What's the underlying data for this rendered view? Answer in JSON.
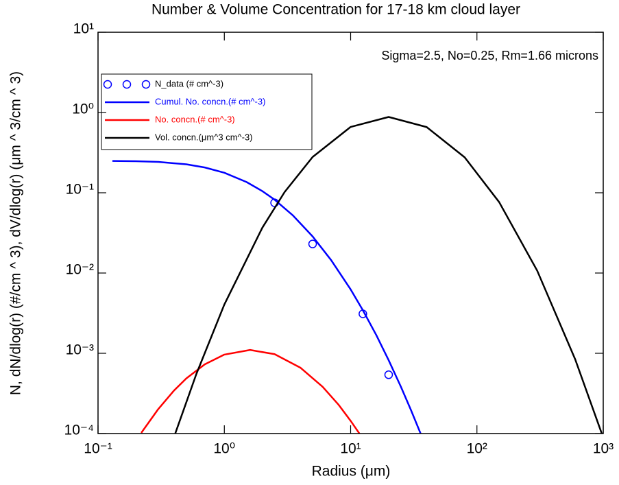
{
  "chart_data": {
    "type": "line",
    "title": "Number & Volume Concentration for 17-18 km cloud layer",
    "annotation": "Sigma=2.5, No=0.25, Rm=1.66 microns",
    "x_label": "Radius (μm)",
    "y_label": "N, dN/dlog(r) (#/cm ^ 3), dV/dlog(r) (μm ^ 3/cm ^ 3)",
    "x_scale": "log",
    "y_scale": "log",
    "xlim": [
      0.1,
      1000
    ],
    "ylim": [
      0.0001,
      10
    ],
    "xticks": [
      {
        "value": 0.1,
        "label": "10⁻¹"
      },
      {
        "value": 1,
        "label": "10⁰"
      },
      {
        "value": 10,
        "label": "10¹"
      },
      {
        "value": 100,
        "label": "10²"
      },
      {
        "value": 1000,
        "label": "10³"
      }
    ],
    "yticks": [
      {
        "value": 0.0001,
        "label": "10⁻⁴"
      },
      {
        "value": 0.001,
        "label": "10⁻³"
      },
      {
        "value": 0.01,
        "label": "10⁻²"
      },
      {
        "value": 0.1,
        "label": "10⁻¹"
      },
      {
        "value": 1,
        "label": "10⁰"
      },
      {
        "value": 10,
        "label": "10¹"
      }
    ],
    "legend": "upper left",
    "series": [
      {
        "name": "N_data (# cm^-3)",
        "color": "#0000ff",
        "mode": "markers",
        "x": [
          2.5,
          5,
          12.5,
          20
        ],
        "values": [
          0.075,
          0.023,
          0.0031,
          0.00054
        ]
      },
      {
        "name": "Cumul. No. concn.(# cm^-3)",
        "color": "#0000ff",
        "mode": "line",
        "x": [
          0.13,
          0.2,
          0.3,
          0.5,
          0.7,
          1,
          1.5,
          2,
          2.5,
          3.5,
          5,
          7,
          10,
          12.5,
          16,
          20,
          25,
          30,
          36
        ],
        "values": [
          0.2493,
          0.2474,
          0.2422,
          0.2263,
          0.2067,
          0.1775,
          0.136,
          0.1048,
          0.082,
          0.052,
          0.0286,
          0.01452,
          0.00625,
          0.00344,
          0.001675,
          0.00082,
          0.000383,
          0.000197,
          9.8e-05
        ]
      },
      {
        "name": "No. concn.(# cm^-3)",
        "color": "#ff0000",
        "mode": "line",
        "x": [
          0.22,
          0.3,
          0.4,
          0.5,
          0.7,
          1,
          1.6,
          2.5,
          4,
          6,
          8,
          10,
          12
        ],
        "values": [
          0.000102,
          0.000202,
          0.000344,
          0.000486,
          0.000728,
          0.000963,
          0.0011,
          0.000975,
          0.000662,
          0.000383,
          0.00023,
          0.000144,
          9.5e-05
        ]
      },
      {
        "name": "Vol. concn.(μm^3 cm^-3)",
        "color": "#000000",
        "mode": "line",
        "x": [
          0.4,
          0.6,
          1,
          2,
          3,
          5,
          10,
          20,
          40,
          80,
          150,
          300,
          600,
          1000
        ],
        "values": [
          9.1e-05,
          0.00055,
          0.00405,
          0.0367,
          0.102,
          0.279,
          0.661,
          0.88,
          0.658,
          0.276,
          0.0764,
          0.0107,
          0.00084,
          8.9e-05
        ]
      }
    ]
  }
}
